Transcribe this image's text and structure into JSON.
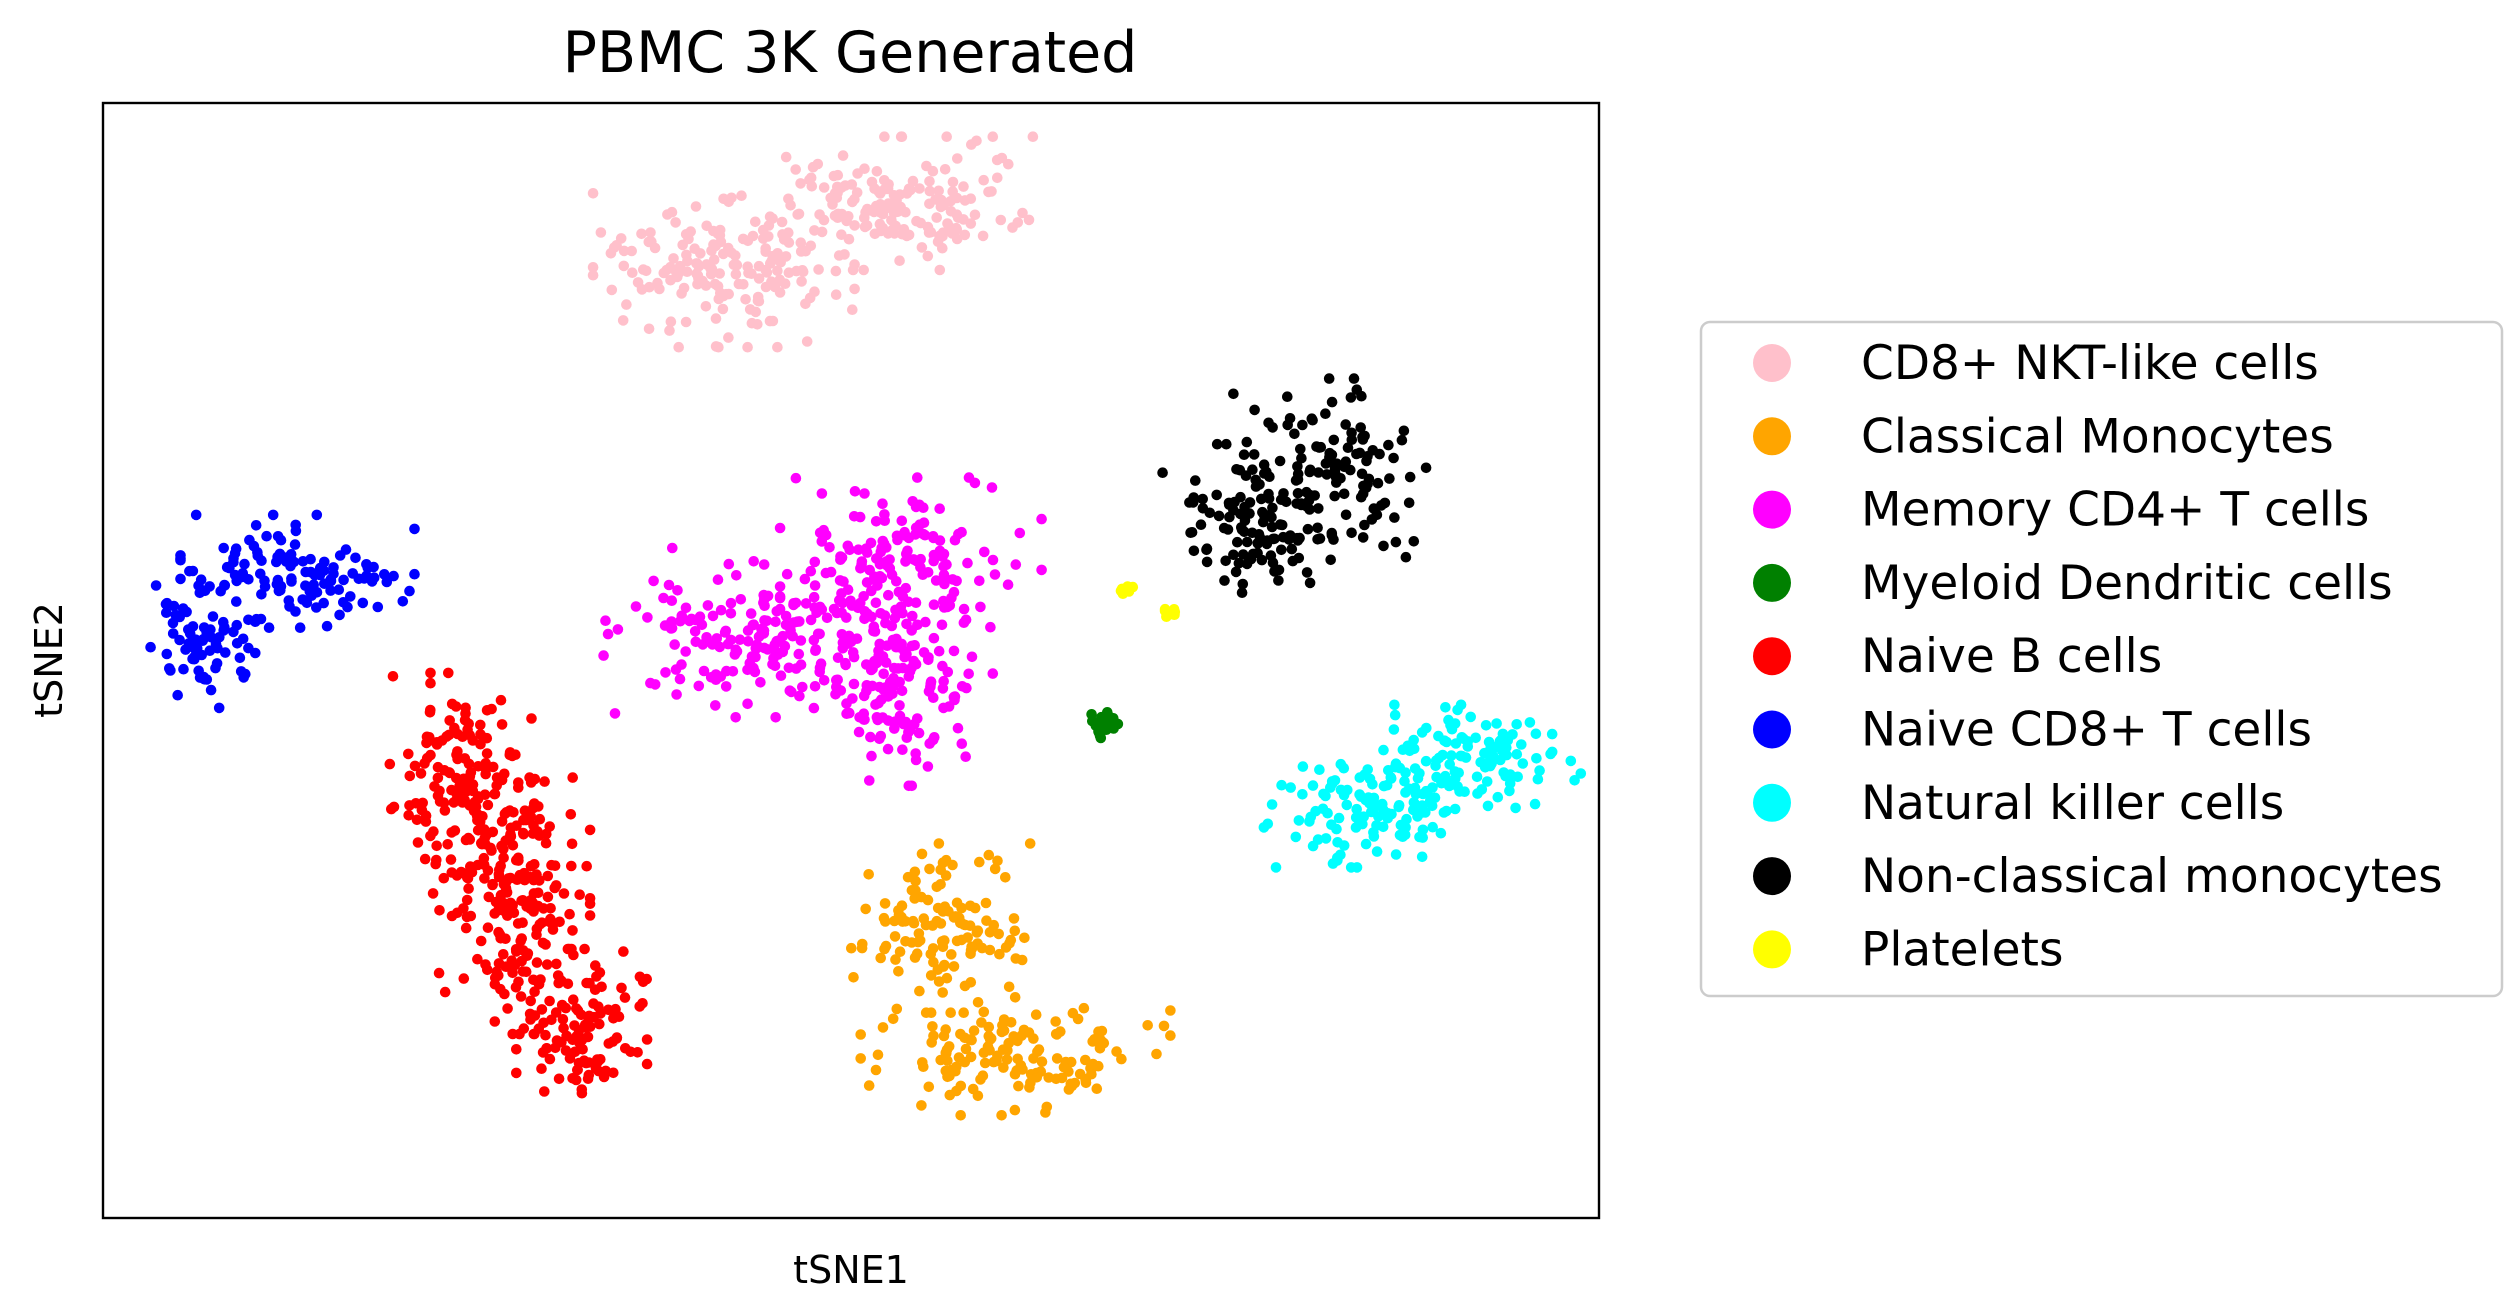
{
  "chart_data": {
    "type": "scatter",
    "title": "PBMC 3K Generated",
    "xlabel": "tSNE1",
    "ylabel": "tSNE2",
    "ticks_visible": false,
    "grid": false,
    "xlim": [
      -50,
      50
    ],
    "ylim": [
      -50,
      50
    ],
    "legend": {
      "placement": "outside-right",
      "entries": [
        "CD8+ NKT-like cells",
        "Classical Monocytes",
        "Memory CD4+ T cells",
        "Myeloid Dendritic cells",
        "Naive B cells",
        "Naive CD8+ T cells",
        "Natural killer  cells",
        "Non-classical monocytes",
        "Platelets"
      ]
    },
    "series": [
      {
        "name": "CD8+ NKT-like cells",
        "color": "#FFC0CB",
        "clusters": [
          {
            "center": [
              -8.5,
              35
            ],
            "spread": [
              3.8,
              3.0
            ],
            "count": 180
          },
          {
            "center": [
              3.5,
              41
            ],
            "spread": [
              4.0,
              2.6
            ],
            "count": 170
          }
        ]
      },
      {
        "name": "Classical Monocytes",
        "color": "#FFA500",
        "clusters": [
          {
            "center": [
              6,
              -24
            ],
            "spread": [
              2.6,
              3.3
            ],
            "count": 130
          },
          {
            "center": [
              11,
              -35.5
            ],
            "spread": [
              4.5,
              2.3
            ],
            "count": 140
          }
        ]
      },
      {
        "name": "Memory CD4+ T cells",
        "color": "#FF00FF",
        "clusters": [
          {
            "center": [
              -5.5,
              2.5
            ],
            "spread": [
              4.8,
              3.3
            ],
            "count": 200
          },
          {
            "center": [
              4,
              9.5
            ],
            "spread": [
              3.8,
              3.0
            ],
            "count": 140
          },
          {
            "center": [
              3.5,
              -2.5
            ],
            "spread": [
              2.6,
              3.8
            ],
            "count": 130
          }
        ]
      },
      {
        "name": "Myeloid Dendritic cells",
        "color": "#008000",
        "clusters": [
          {
            "center": [
              17,
              -5.8
            ],
            "spread": [
              0.4,
              0.5
            ],
            "count": 30
          }
        ]
      },
      {
        "name": "Naive B cells",
        "color": "#FF0000",
        "clusters": [
          {
            "center": [
              -26,
              -11
            ],
            "spread": [
              2.1,
              4.3
            ],
            "count": 160
          },
          {
            "center": [
              -22.5,
              -22
            ],
            "spread": [
              2.2,
              5.0
            ],
            "count": 190
          },
          {
            "center": [
              -18,
              -33
            ],
            "spread": [
              1.9,
              3.1
            ],
            "count": 110
          }
        ]
      },
      {
        "name": "Naive CD8+ T cells",
        "color": "#0000FF",
        "clusters": [
          {
            "center": [
              -43.5,
              1.5
            ],
            "spread": [
              1.6,
              2.5
            ],
            "count": 70
          },
          {
            "center": [
              -37,
              8
            ],
            "spread": [
              3.4,
              2.2
            ],
            "count": 120
          }
        ]
      },
      {
        "name": "Natural killer  cells",
        "color": "#00FFFF",
        "clusters": [
          {
            "center": [
              34.5,
              -13.5
            ],
            "spread": [
              3.0,
              2.2
            ],
            "count": 110
          },
          {
            "center": [
              41.5,
              -8.8
            ],
            "spread": [
              3.6,
              2.1
            ],
            "count": 120
          }
        ]
      },
      {
        "name": "Non-classical monocytes",
        "color": "#000000",
        "clusters": [
          {
            "center": [
              27.5,
              12.5
            ],
            "spread": [
              2.9,
              3.0
            ],
            "count": 110
          },
          {
            "center": [
              32,
              17
            ],
            "spread": [
              2.8,
              3.6
            ],
            "count": 110
          }
        ]
      },
      {
        "name": "Platelets",
        "color": "#FFFF00",
        "clusters": [
          {
            "center": [
              21.5,
              4.2
            ],
            "spread": [
              0.22,
              0.22
            ],
            "count": 8
          },
          {
            "center": [
              18.5,
              6.3
            ],
            "spread": [
              0.3,
              0.2
            ],
            "count": 6
          }
        ]
      }
    ]
  }
}
